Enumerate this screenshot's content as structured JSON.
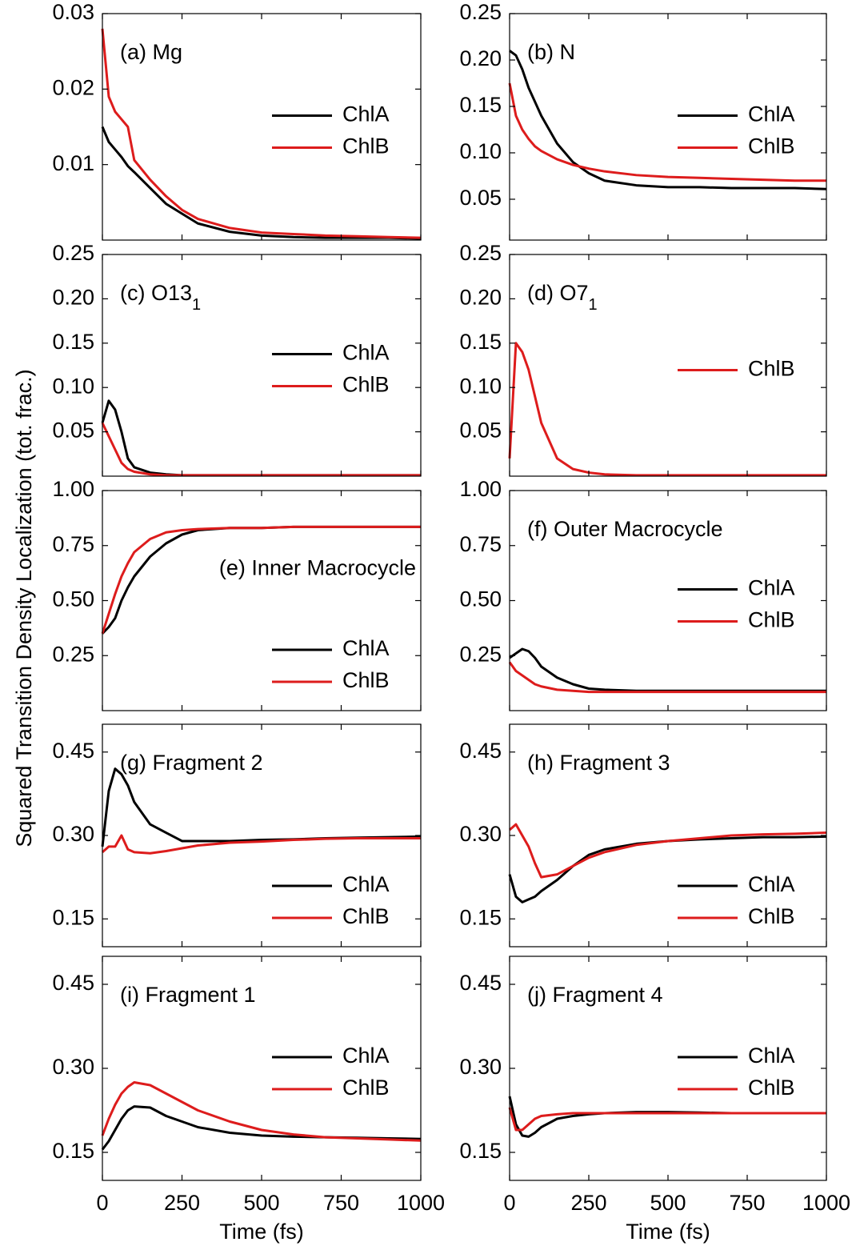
{
  "ylabel": "Squared Transition Density Localization (tot. frac.)",
  "chart_data": [
    {
      "type": "line",
      "title": "(a) Mg",
      "legend": "center right",
      "xlim": [
        0,
        1000
      ],
      "xticks": [
        0,
        250,
        500,
        750,
        1000
      ],
      "ylim": [
        0,
        0.03
      ],
      "yticks": [
        0.01,
        0.02,
        0.03
      ],
      "x": [
        0,
        20,
        40,
        60,
        80,
        100,
        150,
        200,
        250,
        300,
        400,
        500,
        600,
        700,
        800,
        900,
        1000
      ],
      "series": [
        {
          "name": "ChlA",
          "color": "#000000",
          "values": [
            0.015,
            0.013,
            0.012,
            0.011,
            0.0098,
            0.009,
            0.0069,
            0.0048,
            0.0035,
            0.0022,
            0.0011,
            0.0006,
            0.0004,
            0.0003,
            0.0003,
            0.0003,
            0.0002
          ]
        },
        {
          "name": "ChlB",
          "color": "#dd1c1c",
          "values": [
            0.028,
            0.019,
            0.017,
            0.016,
            0.015,
            0.0106,
            0.008,
            0.0058,
            0.004,
            0.0028,
            0.0016,
            0.001,
            0.0008,
            0.0006,
            0.0005,
            0.0004,
            0.0003
          ]
        }
      ]
    },
    {
      "type": "line",
      "title": "(b) N",
      "legend": "center right",
      "xlim": [
        0,
        1000
      ],
      "xticks": [
        0,
        250,
        500,
        750,
        1000
      ],
      "ylim": [
        0.006,
        0.25
      ],
      "yticks": [
        0.05,
        {
          "value": 0.1,
          "label": "0.10"
        },
        0.15,
        {
          "value": 0.2,
          "label": "0.20"
        },
        0.25
      ],
      "x": [
        0,
        20,
        40,
        60,
        80,
        100,
        150,
        200,
        250,
        300,
        400,
        500,
        600,
        700,
        800,
        900,
        1000
      ],
      "series": [
        {
          "name": "ChlA",
          "color": "#000000",
          "values": [
            0.21,
            0.205,
            0.19,
            0.17,
            0.155,
            0.14,
            0.11,
            0.09,
            0.078,
            0.07,
            0.065,
            0.063,
            0.063,
            0.062,
            0.062,
            0.062,
            0.061
          ]
        },
        {
          "name": "ChlB",
          "color": "#dd1c1c",
          "values": [
            0.175,
            0.14,
            0.125,
            0.115,
            0.107,
            0.102,
            0.093,
            0.087,
            0.083,
            0.08,
            0.076,
            0.074,
            0.073,
            0.072,
            0.071,
            0.07,
            0.07
          ]
        }
      ]
    },
    {
      "type": "line",
      "title": "(c) O13",
      "title_sub": "1",
      "legend": "center right",
      "xlim": [
        0,
        1000
      ],
      "xticks": [
        0,
        250,
        500,
        750,
        1000
      ],
      "ylim": [
        0,
        0.25
      ],
      "yticks": [
        0.05,
        {
          "value": 0.1,
          "label": "0.10"
        },
        0.15,
        {
          "value": 0.2,
          "label": "0.20"
        },
        0.25
      ],
      "x": [
        0,
        20,
        40,
        60,
        80,
        100,
        150,
        200,
        250,
        300,
        400,
        500,
        600,
        700,
        800,
        900,
        1000
      ],
      "series": [
        {
          "name": "ChlA",
          "color": "#000000",
          "values": [
            0.06,
            0.085,
            0.075,
            0.05,
            0.02,
            0.01,
            0.004,
            0.002,
            0.001,
            0.001,
            0.001,
            0.001,
            0.001,
            0.001,
            0.001,
            0.001,
            0.001
          ]
        },
        {
          "name": "ChlB",
          "color": "#dd1c1c",
          "values": [
            0.06,
            0.045,
            0.03,
            0.015,
            0.008,
            0.005,
            0.002,
            0.001,
            0.001,
            0.001,
            0.001,
            0.001,
            0.001,
            0.001,
            0.001,
            0.001,
            0.001
          ]
        }
      ]
    },
    {
      "type": "line",
      "title": "(d) O7",
      "title_sub": "1",
      "legend": "center right",
      "xlim": [
        0,
        1000
      ],
      "xticks": [
        0,
        250,
        500,
        750,
        1000
      ],
      "ylim": [
        0,
        0.25
      ],
      "yticks": [
        0.05,
        {
          "value": 0.1,
          "label": "0.10"
        },
        0.15,
        {
          "value": 0.2,
          "label": "0.20"
        },
        0.25
      ],
      "x": [
        0,
        20,
        40,
        60,
        80,
        100,
        150,
        200,
        250,
        300,
        400,
        500,
        600,
        700,
        800,
        900,
        1000
      ],
      "series": [
        {
          "name": "ChlB",
          "color": "#dd1c1c",
          "values": [
            0.02,
            0.15,
            0.14,
            0.12,
            0.09,
            0.06,
            0.02,
            0.008,
            0.004,
            0.002,
            0.001,
            0.001,
            0.001,
            0.001,
            0.001,
            0.001,
            0.001
          ]
        }
      ]
    },
    {
      "type": "line",
      "title": "(e) Inner Macrocycle",
      "title_loc": "center right",
      "legend": "lower right",
      "xlim": [
        0,
        1000
      ],
      "xticks": [
        0,
        250,
        500,
        750,
        1000
      ],
      "ylim": [
        0,
        1
      ],
      "yticks": [
        0.25,
        {
          "value": 0.5,
          "label": "0.50"
        },
        0.75,
        {
          "value": 1,
          "label": "1.00"
        }
      ],
      "x": [
        0,
        20,
        40,
        60,
        80,
        100,
        150,
        200,
        250,
        300,
        400,
        500,
        600,
        700,
        800,
        900,
        1000
      ],
      "series": [
        {
          "name": "ChlA",
          "color": "#000000",
          "values": [
            0.35,
            0.38,
            0.42,
            0.5,
            0.56,
            0.61,
            0.7,
            0.76,
            0.8,
            0.82,
            0.83,
            0.83,
            0.835,
            0.835,
            0.835,
            0.835,
            0.835
          ]
        },
        {
          "name": "ChlB",
          "color": "#dd1c1c",
          "values": [
            0.35,
            0.44,
            0.53,
            0.61,
            0.67,
            0.72,
            0.78,
            0.81,
            0.82,
            0.825,
            0.83,
            0.83,
            0.835,
            0.835,
            0.835,
            0.835,
            0.835
          ]
        }
      ]
    },
    {
      "type": "line",
      "title": "(f) Outer Macrocycle",
      "legend": "center right",
      "xlim": [
        0,
        1000
      ],
      "xticks": [
        0,
        250,
        500,
        750,
        1000
      ],
      "ylim": [
        0,
        1
      ],
      "yticks": [
        0.25,
        {
          "value": 0.5,
          "label": "0.50"
        },
        0.75,
        {
          "value": 1,
          "label": "1.00"
        }
      ],
      "x": [
        0,
        20,
        40,
        60,
        80,
        100,
        150,
        200,
        250,
        300,
        400,
        500,
        600,
        700,
        800,
        900,
        1000
      ],
      "series": [
        {
          "name": "ChlA",
          "color": "#000000",
          "values": [
            0.24,
            0.26,
            0.28,
            0.27,
            0.24,
            0.2,
            0.15,
            0.12,
            0.1,
            0.095,
            0.09,
            0.09,
            0.09,
            0.09,
            0.09,
            0.09,
            0.09
          ]
        },
        {
          "name": "ChlB",
          "color": "#dd1c1c",
          "values": [
            0.22,
            0.18,
            0.16,
            0.14,
            0.12,
            0.11,
            0.095,
            0.09,
            0.085,
            0.085,
            0.085,
            0.085,
            0.085,
            0.085,
            0.085,
            0.085,
            0.085
          ]
        }
      ]
    },
    {
      "type": "line",
      "title": "(g) Fragment 2",
      "legend": "lower right",
      "xlim": [
        0,
        1000
      ],
      "xticks": [
        0,
        250,
        500,
        750,
        1000
      ],
      "ylim": [
        0.1,
        0.5
      ],
      "yticks": [
        0.15,
        {
          "value": 0.3,
          "label": "0.30"
        },
        0.45
      ],
      "x": [
        0,
        20,
        40,
        60,
        80,
        100,
        150,
        200,
        250,
        300,
        400,
        500,
        600,
        700,
        800,
        900,
        1000
      ],
      "series": [
        {
          "name": "ChlA",
          "color": "#000000",
          "values": [
            0.28,
            0.38,
            0.42,
            0.41,
            0.39,
            0.36,
            0.32,
            0.305,
            0.29,
            0.29,
            0.29,
            0.292,
            0.293,
            0.295,
            0.296,
            0.297,
            0.298
          ]
        },
        {
          "name": "ChlB",
          "color": "#dd1c1c",
          "values": [
            0.27,
            0.28,
            0.28,
            0.3,
            0.275,
            0.27,
            0.268,
            0.272,
            0.277,
            0.282,
            0.287,
            0.289,
            0.292,
            0.294,
            0.295,
            0.295,
            0.295
          ]
        }
      ]
    },
    {
      "type": "line",
      "title": "(h) Fragment 3",
      "legend": "lower right",
      "xlim": [
        0,
        1000
      ],
      "xticks": [
        0,
        250,
        500,
        750,
        1000
      ],
      "ylim": [
        0.1,
        0.5
      ],
      "yticks": [
        0.15,
        {
          "value": 0.3,
          "label": "0.30"
        },
        0.45
      ],
      "x": [
        0,
        20,
        40,
        60,
        80,
        100,
        150,
        200,
        250,
        300,
        400,
        500,
        600,
        700,
        800,
        900,
        1000
      ],
      "series": [
        {
          "name": "ChlA",
          "color": "#000000",
          "values": [
            0.23,
            0.19,
            0.18,
            0.185,
            0.19,
            0.2,
            0.22,
            0.245,
            0.265,
            0.275,
            0.285,
            0.29,
            0.293,
            0.295,
            0.297,
            0.297,
            0.298
          ]
        },
        {
          "name": "ChlB",
          "color": "#dd1c1c",
          "values": [
            0.31,
            0.32,
            0.3,
            0.28,
            0.25,
            0.225,
            0.23,
            0.245,
            0.26,
            0.27,
            0.283,
            0.29,
            0.295,
            0.3,
            0.302,
            0.303,
            0.305
          ]
        }
      ]
    },
    {
      "type": "line",
      "title": "(i) Fragment 1",
      "legend": "center right",
      "xlabel": "Time (fs)",
      "xlim": [
        0,
        1000
      ],
      "xticks": [
        0,
        250,
        500,
        750,
        1000
      ],
      "ylim": [
        0.1,
        0.5
      ],
      "yticks": [
        0.15,
        {
          "value": 0.3,
          "label": "0.30"
        },
        0.45
      ],
      "x": [
        0,
        20,
        40,
        60,
        80,
        100,
        150,
        200,
        250,
        300,
        400,
        500,
        600,
        700,
        800,
        900,
        1000
      ],
      "series": [
        {
          "name": "ChlA",
          "color": "#000000",
          "values": [
            0.155,
            0.17,
            0.19,
            0.21,
            0.225,
            0.232,
            0.23,
            0.215,
            0.205,
            0.195,
            0.185,
            0.18,
            0.178,
            0.177,
            0.176,
            0.175,
            0.174
          ]
        },
        {
          "name": "ChlB",
          "color": "#dd1c1c",
          "values": [
            0.18,
            0.21,
            0.235,
            0.255,
            0.267,
            0.275,
            0.27,
            0.255,
            0.24,
            0.225,
            0.205,
            0.19,
            0.182,
            0.177,
            0.175,
            0.173,
            0.171
          ]
        }
      ]
    },
    {
      "type": "line",
      "title": "(j) Fragment 4",
      "legend": "center right",
      "xlabel": "Time (fs)",
      "xlim": [
        0,
        1000
      ],
      "xticks": [
        0,
        250,
        500,
        750,
        1000
      ],
      "ylim": [
        0.1,
        0.5
      ],
      "yticks": [
        0.15,
        {
          "value": 0.3,
          "label": "0.30"
        },
        0.45
      ],
      "x": [
        0,
        20,
        40,
        60,
        80,
        100,
        150,
        200,
        250,
        300,
        400,
        500,
        600,
        700,
        800,
        900,
        1000
      ],
      "series": [
        {
          "name": "ChlA",
          "color": "#000000",
          "values": [
            0.25,
            0.2,
            0.18,
            0.178,
            0.185,
            0.195,
            0.21,
            0.215,
            0.218,
            0.22,
            0.222,
            0.222,
            0.221,
            0.22,
            0.22,
            0.22,
            0.22
          ]
        },
        {
          "name": "ChlB",
          "color": "#dd1c1c",
          "values": [
            0.23,
            0.19,
            0.19,
            0.2,
            0.21,
            0.215,
            0.218,
            0.22,
            0.22,
            0.22,
            0.22,
            0.22,
            0.22,
            0.22,
            0.22,
            0.22,
            0.22
          ]
        }
      ]
    }
  ]
}
